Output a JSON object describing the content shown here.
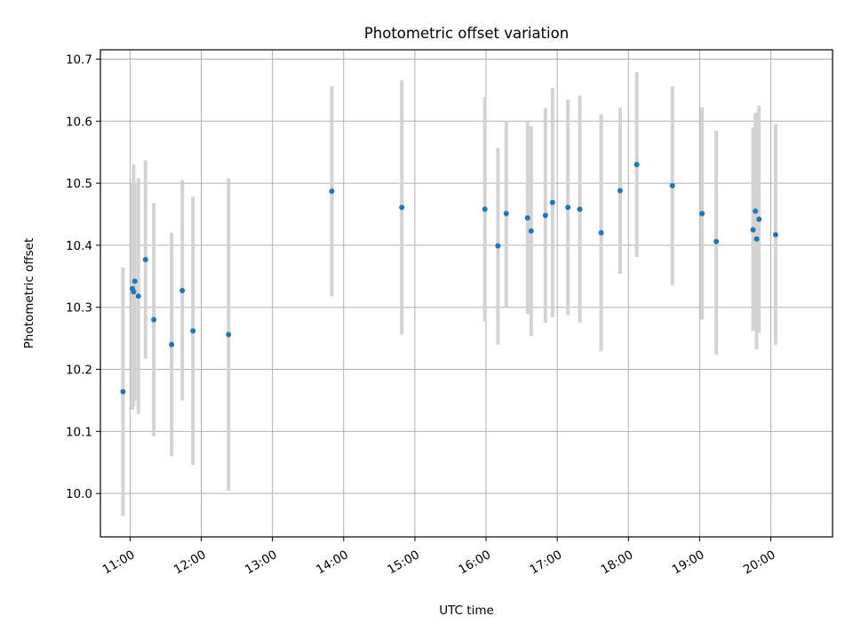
{
  "chart_data": {
    "type": "scatter",
    "title": "Photometric offset variation",
    "xlabel": "UTC time",
    "ylabel": "Photometric offset",
    "x_unit": "UTC time (HH:MM)",
    "xlim": [
      "10:35",
      "20:52"
    ],
    "ylim": [
      9.93,
      10.715
    ],
    "x_ticks": [
      "11:00",
      "12:00",
      "13:00",
      "14:00",
      "15:00",
      "16:00",
      "17:00",
      "18:00",
      "19:00",
      "20:00"
    ],
    "y_ticks": [
      "10.0",
      "10.1",
      "10.2",
      "10.3",
      "10.4",
      "10.5",
      "10.6",
      "10.7"
    ],
    "grid": true,
    "colors": {
      "points": "#1f77b4",
      "errorbars": "#d3d3d3",
      "grid": "#b0b0b0"
    },
    "points": [
      {
        "x": "10:54",
        "y": 10.164,
        "ylow": 9.964,
        "yhigh": 10.364
      },
      {
        "x": "11:02",
        "y": 10.33,
        "ylow": 10.135,
        "yhigh": 10.5
      },
      {
        "x": "11:03",
        "y": 10.325,
        "ylow": 10.14,
        "yhigh": 10.53
      },
      {
        "x": "11:04",
        "y": 10.342,
        "ylow": 10.15,
        "yhigh": 10.5
      },
      {
        "x": "11:07",
        "y": 10.318,
        "ylow": 10.128,
        "yhigh": 10.508
      },
      {
        "x": "11:13",
        "y": 10.377,
        "ylow": 10.217,
        "yhigh": 10.537
      },
      {
        "x": "11:20",
        "y": 10.28,
        "ylow": 10.092,
        "yhigh": 10.468
      },
      {
        "x": "11:35",
        "y": 10.24,
        "ylow": 10.06,
        "yhigh": 10.42
      },
      {
        "x": "11:44",
        "y": 10.327,
        "ylow": 10.15,
        "yhigh": 10.505
      },
      {
        "x": "11:53",
        "y": 10.262,
        "ylow": 10.046,
        "yhigh": 10.478
      },
      {
        "x": "12:23",
        "y": 10.256,
        "ylow": 10.004,
        "yhigh": 10.508
      },
      {
        "x": "13:50",
        "y": 10.487,
        "ylow": 10.318,
        "yhigh": 10.656
      },
      {
        "x": "14:49",
        "y": 10.461,
        "ylow": 10.256,
        "yhigh": 10.666
      },
      {
        "x": "15:59",
        "y": 10.458,
        "ylow": 10.277,
        "yhigh": 10.639
      },
      {
        "x": "16:10",
        "y": 10.399,
        "ylow": 10.24,
        "yhigh": 10.557
      },
      {
        "x": "16:17",
        "y": 10.451,
        "ylow": 10.301,
        "yhigh": 10.601
      },
      {
        "x": "16:35",
        "y": 10.444,
        "ylow": 10.289,
        "yhigh": 10.599
      },
      {
        "x": "16:38",
        "y": 10.423,
        "ylow": 10.254,
        "yhigh": 10.592
      },
      {
        "x": "16:50",
        "y": 10.448,
        "ylow": 10.275,
        "yhigh": 10.621
      },
      {
        "x": "16:56",
        "y": 10.469,
        "ylow": 10.284,
        "yhigh": 10.654
      },
      {
        "x": "17:09",
        "y": 10.461,
        "ylow": 10.287,
        "yhigh": 10.635
      },
      {
        "x": "17:19",
        "y": 10.458,
        "ylow": 10.275,
        "yhigh": 10.641
      },
      {
        "x": "17:37",
        "y": 10.42,
        "ylow": 10.229,
        "yhigh": 10.611
      },
      {
        "x": "17:53",
        "y": 10.488,
        "ylow": 10.354,
        "yhigh": 10.622
      },
      {
        "x": "18:07",
        "y": 10.53,
        "ylow": 10.381,
        "yhigh": 10.679
      },
      {
        "x": "18:37",
        "y": 10.496,
        "ylow": 10.336,
        "yhigh": 10.656
      },
      {
        "x": "19:02",
        "y": 10.451,
        "ylow": 10.28,
        "yhigh": 10.622
      },
      {
        "x": "19:14",
        "y": 10.406,
        "ylow": 10.224,
        "yhigh": 10.585
      },
      {
        "x": "19:45",
        "y": 10.425,
        "ylow": 10.262,
        "yhigh": 10.59
      },
      {
        "x": "19:47",
        "y": 10.455,
        "ylow": 10.265,
        "yhigh": 10.612
      },
      {
        "x": "19:48",
        "y": 10.41,
        "ylow": 10.232,
        "yhigh": 10.614
      },
      {
        "x": "19:50",
        "y": 10.442,
        "ylow": 10.259,
        "yhigh": 10.625
      },
      {
        "x": "20:04",
        "y": 10.417,
        "ylow": 10.239,
        "yhigh": 10.595
      }
    ]
  }
}
